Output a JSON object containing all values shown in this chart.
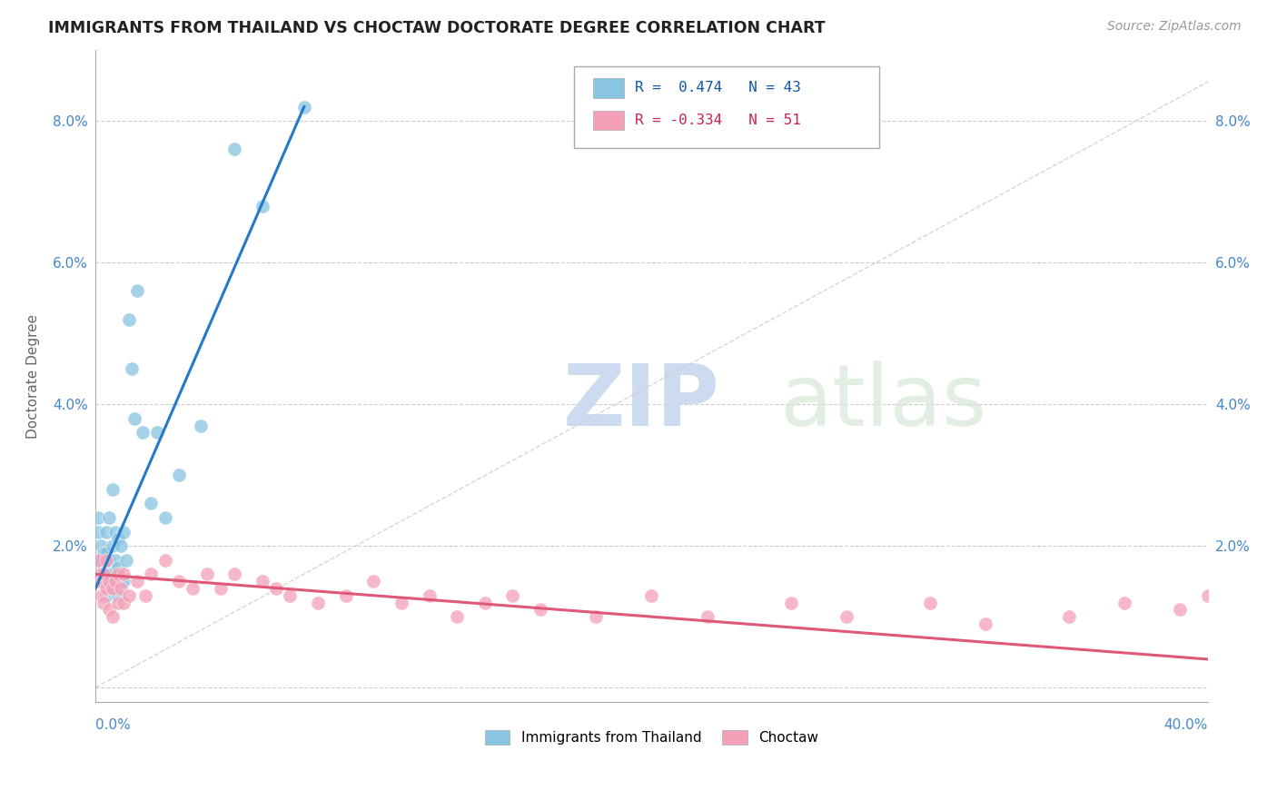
{
  "title": "IMMIGRANTS FROM THAILAND VS CHOCTAW DOCTORATE DEGREE CORRELATION CHART",
  "source": "Source: ZipAtlas.com",
  "ylabel": "Doctorate Degree",
  "y_ticks": [
    0.0,
    0.02,
    0.04,
    0.06,
    0.08
  ],
  "y_tick_labels": [
    "",
    "2.0%",
    "4.0%",
    "6.0%",
    "8.0%"
  ],
  "xmin": 0.0,
  "xmax": 0.4,
  "ymin": -0.002,
  "ymax": 0.09,
  "legend_R1": "R =  0.474",
  "legend_N1": "N = 43",
  "legend_R2": "R = -0.334",
  "legend_N2": "N = 51",
  "color_blue": "#89c4e1",
  "color_pink": "#f4a0b8",
  "color_blue_line": "#2878c8",
  "color_pink_line": "#e05878",
  "blue_line_x0": 0.0,
  "blue_line_y0": 0.014,
  "blue_line_x1": 0.075,
  "blue_line_y1": 0.082,
  "pink_line_x0": 0.0,
  "pink_line_y0": 0.016,
  "pink_line_x1": 0.4,
  "pink_line_y1": 0.004,
  "blue_scatter_x": [
    0.001,
    0.001,
    0.001,
    0.002,
    0.002,
    0.002,
    0.003,
    0.003,
    0.003,
    0.004,
    0.004,
    0.004,
    0.004,
    0.005,
    0.005,
    0.005,
    0.006,
    0.006,
    0.006,
    0.007,
    0.007,
    0.007,
    0.008,
    0.008,
    0.008,
    0.009,
    0.009,
    0.01,
    0.01,
    0.011,
    0.012,
    0.013,
    0.014,
    0.015,
    0.017,
    0.02,
    0.022,
    0.025,
    0.03,
    0.038,
    0.05,
    0.06,
    0.075
  ],
  "blue_scatter_y": [
    0.024,
    0.022,
    0.018,
    0.02,
    0.018,
    0.016,
    0.019,
    0.017,
    0.015,
    0.022,
    0.019,
    0.016,
    0.013,
    0.024,
    0.018,
    0.015,
    0.028,
    0.02,
    0.016,
    0.022,
    0.018,
    0.014,
    0.021,
    0.017,
    0.013,
    0.02,
    0.015,
    0.022,
    0.015,
    0.018,
    0.052,
    0.045,
    0.038,
    0.056,
    0.036,
    0.026,
    0.036,
    0.024,
    0.03,
    0.037,
    0.076,
    0.068,
    0.082
  ],
  "pink_scatter_x": [
    0.001,
    0.001,
    0.002,
    0.002,
    0.003,
    0.003,
    0.004,
    0.004,
    0.005,
    0.005,
    0.006,
    0.006,
    0.007,
    0.008,
    0.008,
    0.009,
    0.01,
    0.01,
    0.012,
    0.015,
    0.018,
    0.02,
    0.025,
    0.03,
    0.035,
    0.04,
    0.045,
    0.05,
    0.06,
    0.065,
    0.07,
    0.08,
    0.09,
    0.1,
    0.11,
    0.12,
    0.13,
    0.14,
    0.15,
    0.16,
    0.18,
    0.2,
    0.22,
    0.25,
    0.27,
    0.3,
    0.32,
    0.35,
    0.37,
    0.39,
    0.4
  ],
  "pink_scatter_y": [
    0.018,
    0.015,
    0.016,
    0.013,
    0.016,
    0.012,
    0.018,
    0.014,
    0.015,
    0.011,
    0.014,
    0.01,
    0.015,
    0.016,
    0.012,
    0.014,
    0.016,
    0.012,
    0.013,
    0.015,
    0.013,
    0.016,
    0.018,
    0.015,
    0.014,
    0.016,
    0.014,
    0.016,
    0.015,
    0.014,
    0.013,
    0.012,
    0.013,
    0.015,
    0.012,
    0.013,
    0.01,
    0.012,
    0.013,
    0.011,
    0.01,
    0.013,
    0.01,
    0.012,
    0.01,
    0.012,
    0.009,
    0.01,
    0.012,
    0.011,
    0.013
  ]
}
